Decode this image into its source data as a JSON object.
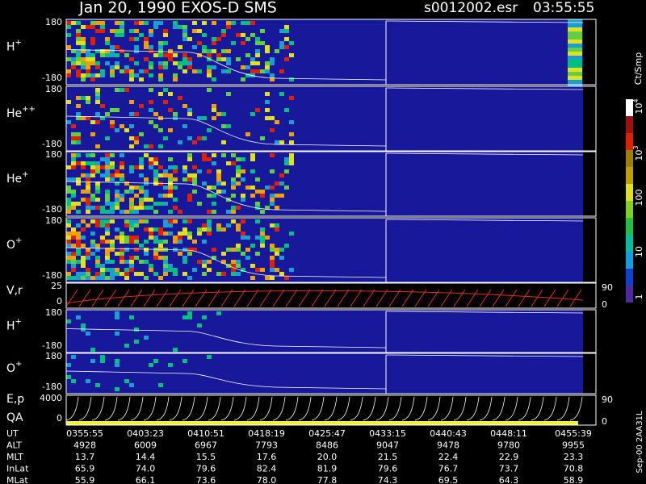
{
  "header": {
    "title": "Jan 20, 1990   EXOS-D SMS",
    "file": "s0012002.esr",
    "time": "03:55:55"
  },
  "panels": [
    {
      "label": "H",
      "sup": "+",
      "top": "180",
      "bottom": "-180"
    },
    {
      "label": "He",
      "sup": "++",
      "top": "180",
      "bottom": "-180"
    },
    {
      "label": "He",
      "sup": "+",
      "top": "180",
      "bottom": "-180"
    },
    {
      "label": "O",
      "sup": "+",
      "top": "180",
      "bottom": "-180"
    },
    {
      "label": "V,r",
      "top": "25",
      "bottom": "0",
      "right_top": "90",
      "right_bottom": "0"
    },
    {
      "label": "H",
      "sup": "+",
      "top": "180",
      "bottom": "-180"
    },
    {
      "label": "O",
      "sup": "+",
      "top": "180",
      "bottom": "-180"
    },
    {
      "label": "E,p",
      "top": "4000",
      "bottom": "0",
      "right_top": "90",
      "right_bottom": "0"
    }
  ],
  "qa_label": "QA",
  "colorbar": {
    "title": "Ct/Smp",
    "labels": [
      {
        "text": "1"
      },
      {
        "text": "10"
      },
      {
        "text": "100"
      },
      {
        "text": "10",
        "sup": "3"
      },
      {
        "text": "10",
        "sup": "4"
      }
    ]
  },
  "footer": {
    "rows": [
      {
        "label": "UT",
        "values": [
          "0355:55",
          "0403:23",
          "0410:51",
          "0418:19",
          "0425:47",
          "0433:15",
          "0440:43",
          "0448:11",
          "0455:39"
        ]
      },
      {
        "label": "ALT",
        "values": [
          "4928",
          "6009",
          "6967",
          "7793",
          "8486",
          "9047",
          "9478",
          "9780",
          "9955"
        ]
      },
      {
        "label": "MLT",
        "values": [
          "13.7",
          "14.4",
          "15.5",
          "17.6",
          "20.0",
          "21.5",
          "22.4",
          "22.9",
          "23.3"
        ]
      },
      {
        "label": "InLat",
        "values": [
          "65.9",
          "74.0",
          "79.6",
          "82.4",
          "81.9",
          "79.6",
          "76.7",
          "73.7",
          "70.8"
        ]
      },
      {
        "label": "MLat",
        "values": [
          "55.9",
          "66.1",
          "73.6",
          "78.0",
          "77.8",
          "74.3",
          "69.5",
          "64.3",
          "58.9"
        ]
      }
    ]
  },
  "footnote": "Sep-00  2AA31L"
}
